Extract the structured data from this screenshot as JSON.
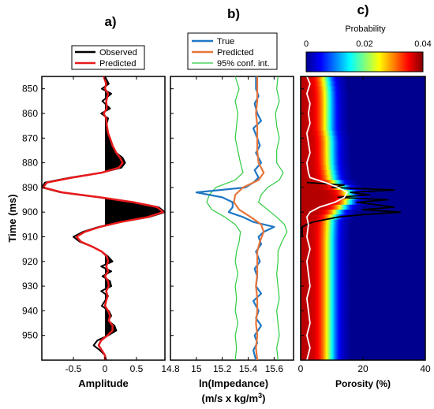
{
  "chart_data": [
    {
      "panel": "a)",
      "type": "line",
      "xlabel": "Amplitude",
      "ylabel": "Time (ms)",
      "xlim": [
        -1.0,
        0.95
      ],
      "ylim": [
        845,
        960
      ],
      "x_ticks": [
        "-0.5",
        "0",
        "0.5"
      ],
      "x_tick_values": [
        -0.5,
        0,
        0.5
      ],
      "y_ticks": [
        "850",
        "860",
        "870",
        "880",
        "890",
        "900",
        "910",
        "920",
        "930",
        "940",
        "950"
      ],
      "y_tick_values": [
        850,
        860,
        870,
        880,
        890,
        900,
        910,
        920,
        930,
        940,
        950
      ],
      "legend": {
        "position": "top-center",
        "entries": [
          "Observed",
          "Predicted"
        ]
      },
      "series": [
        {
          "name": "Observed",
          "color": "#000000",
          "t": [
            845,
            848,
            850,
            852,
            855,
            858,
            860,
            862,
            865,
            868,
            870,
            873,
            876,
            878,
            880,
            882,
            884,
            886,
            888,
            890,
            892,
            894,
            896,
            898,
            900,
            902,
            904,
            906,
            908,
            910,
            912,
            914,
            916,
            918,
            920,
            922,
            924,
            926,
            928,
            930,
            932,
            934,
            936,
            938,
            940,
            942,
            944,
            946,
            948,
            950,
            952,
            954,
            956,
            958,
            960
          ],
          "values": [
            0.0,
            0.06,
            -0.05,
            0.1,
            -0.04,
            0.08,
            -0.06,
            0.05,
            0.02,
            0.05,
            0.08,
            0.1,
            0.18,
            0.28,
            0.32,
            0.26,
            -0.05,
            -0.55,
            -0.95,
            -1.0,
            -0.7,
            -0.1,
            0.45,
            0.85,
            0.95,
            0.7,
            0.25,
            -0.1,
            -0.35,
            -0.5,
            -0.4,
            -0.2,
            -0.05,
            0.05,
            0.12,
            -0.06,
            0.1,
            -0.04,
            0.08,
            0.1,
            -0.06,
            0.05,
            0.0,
            -0.05,
            0.06,
            0.1,
            0.05,
            0.15,
            0.18,
            0.05,
            -0.12,
            -0.18,
            -0.08,
            0.0,
            0.02
          ]
        },
        {
          "name": "Predicted",
          "color": "#e8191b",
          "t": [
            845,
            848,
            850,
            852,
            855,
            858,
            860,
            862,
            865,
            868,
            870,
            873,
            876,
            878,
            880,
            882,
            884,
            886,
            888,
            890,
            892,
            894,
            896,
            898,
            900,
            902,
            904,
            906,
            908,
            910,
            912,
            914,
            916,
            918,
            920,
            922,
            924,
            926,
            928,
            930,
            932,
            934,
            936,
            938,
            940,
            942,
            944,
            946,
            948,
            950,
            952,
            954,
            956,
            958,
            960
          ],
          "values": [
            -0.02,
            0.02,
            0.0,
            0.05,
            0.02,
            0.03,
            -0.02,
            0.02,
            0.03,
            0.05,
            0.08,
            0.12,
            0.18,
            0.24,
            0.28,
            0.22,
            -0.05,
            -0.52,
            -0.92,
            -0.98,
            -0.68,
            -0.08,
            0.45,
            0.83,
            0.92,
            0.68,
            0.25,
            -0.08,
            -0.32,
            -0.45,
            -0.38,
            -0.2,
            -0.05,
            0.03,
            0.05,
            0.02,
            0.05,
            0.0,
            0.05,
            0.06,
            0.02,
            0.04,
            0.02,
            0.0,
            0.05,
            0.08,
            0.06,
            0.12,
            0.12,
            0.04,
            -0.06,
            -0.1,
            -0.05,
            0.0,
            0.0
          ]
        }
      ]
    },
    {
      "panel": "b)",
      "type": "line",
      "xlabel": "ln(Impedance)",
      "xlabel_units": "(m/s x kg/m",
      "xlabel_units_sup": "3",
      "xlabel_units_close": ")",
      "xlim": [
        14.8,
        15.75
      ],
      "ylim": [
        845,
        960
      ],
      "x_ticks": [
        "14.8",
        "15",
        "15.2",
        "15.4",
        "15.6"
      ],
      "x_tick_values": [
        14.8,
        15.0,
        15.2,
        15.4,
        15.6
      ],
      "legend": {
        "position": "top",
        "entries": [
          "True",
          "Predicted",
          "95% conf. int."
        ]
      },
      "series": [
        {
          "name": "True",
          "color": "#1f77c4",
          "t": [
            845,
            850,
            853,
            856,
            860,
            863,
            866,
            870,
            873,
            876,
            880,
            883,
            886,
            888,
            890,
            892,
            894,
            896,
            898,
            900,
            902,
            904,
            906,
            908,
            910,
            913,
            916,
            920,
            923,
            926,
            930,
            933,
            936,
            940,
            943,
            946,
            950,
            953,
            956,
            960
          ],
          "values": [
            15.46,
            15.46,
            15.48,
            15.45,
            15.47,
            15.5,
            15.44,
            15.47,
            15.49,
            15.46,
            15.5,
            15.45,
            15.48,
            15.44,
            15.38,
            15.0,
            15.2,
            15.28,
            15.28,
            15.25,
            15.36,
            15.44,
            15.6,
            15.52,
            15.48,
            15.5,
            15.46,
            15.49,
            15.45,
            15.47,
            15.46,
            15.5,
            15.44,
            15.48,
            15.46,
            15.5,
            15.45,
            15.47,
            15.44,
            15.46
          ]
        },
        {
          "name": "Predicted",
          "color": "#e8753a",
          "t": [
            845,
            850,
            855,
            860,
            865,
            870,
            875,
            880,
            884,
            887,
            890,
            893,
            896,
            899,
            902,
            905,
            908,
            912,
            916,
            920,
            925,
            930,
            935,
            940,
            945,
            950,
            955,
            960
          ],
          "values": [
            15.47,
            15.47,
            15.47,
            15.46,
            15.47,
            15.47,
            15.47,
            15.48,
            15.52,
            15.48,
            15.36,
            15.3,
            15.29,
            15.33,
            15.42,
            15.5,
            15.52,
            15.49,
            15.47,
            15.47,
            15.47,
            15.46,
            15.47,
            15.47,
            15.46,
            15.47,
            15.46,
            15.47
          ]
        },
        {
          "name": "95% conf. int.",
          "color": "#2ecc40",
          "t": [
            845,
            850,
            855,
            860,
            865,
            870,
            875,
            880,
            884,
            887,
            890,
            893,
            896,
            899,
            902,
            905,
            908,
            912,
            916,
            920,
            925,
            930,
            935,
            940,
            945,
            950,
            955,
            960
          ],
          "values": [
            15.3,
            15.33,
            15.3,
            15.32,
            15.31,
            15.3,
            15.32,
            15.34,
            15.36,
            15.3,
            15.15,
            15.1,
            15.08,
            15.12,
            15.22,
            15.3,
            15.34,
            15.33,
            15.31,
            15.3,
            15.32,
            15.3,
            15.31,
            15.3,
            15.32,
            15.3,
            15.31,
            15.3
          ]
        },
        {
          "name": "95% conf. int. upper",
          "color": "#2ecc40",
          "t": [
            845,
            850,
            855,
            860,
            865,
            870,
            875,
            880,
            884,
            887,
            890,
            893,
            896,
            899,
            902,
            905,
            908,
            912,
            916,
            920,
            925,
            930,
            935,
            940,
            945,
            950,
            955,
            960
          ],
          "values": [
            15.63,
            15.62,
            15.64,
            15.61,
            15.62,
            15.64,
            15.62,
            15.62,
            15.67,
            15.64,
            15.55,
            15.5,
            15.48,
            15.55,
            15.62,
            15.68,
            15.7,
            15.66,
            15.63,
            15.63,
            15.62,
            15.63,
            15.64,
            15.62,
            15.63,
            15.64,
            15.62,
            15.63
          ]
        }
      ]
    },
    {
      "panel": "c)",
      "type": "heatmap",
      "xlabel": "Porosity (%)",
      "xlim": [
        0,
        40
      ],
      "ylim": [
        845,
        960
      ],
      "x_ticks": [
        "0",
        "20",
        "40"
      ],
      "x_tick_values": [
        0,
        20,
        40
      ],
      "colorbar": {
        "label": "Probability",
        "range": [
          0,
          0.04
        ],
        "ticks": [
          "0",
          "0.02",
          "0.04"
        ],
        "tick_values": [
          0,
          0.02,
          0.04
        ],
        "colormap": "jet"
      },
      "grid_t": [
        845,
        850,
        855,
        860,
        865,
        870,
        875,
        880,
        885,
        888,
        890,
        892,
        894,
        896,
        898,
        900,
        903,
        906,
        910,
        915,
        920,
        925,
        930,
        935,
        940,
        945,
        950,
        955,
        960
      ],
      "density_center": [
        4,
        4.5,
        4.5,
        4.5,
        4.5,
        5,
        5,
        5,
        5.5,
        6.5,
        8,
        9,
        9,
        8,
        7,
        6,
        5,
        5,
        5,
        5,
        5,
        5,
        5,
        5,
        5,
        5,
        5,
        5,
        5
      ],
      "density_width": [
        4.2,
        4.2,
        4.3,
        4.3,
        4.3,
        4.4,
        4.4,
        4.5,
        4.6,
        5.5,
        6.5,
        7,
        7,
        6.5,
        5.5,
        5,
        4.6,
        4.5,
        4.4,
        4.4,
        4.4,
        4.4,
        4.4,
        4.4,
        4.4,
        4.4,
        4.4,
        4.4,
        4.4
      ],
      "series": [
        {
          "name": "Observed porosity",
          "color": "#000000",
          "t": [
            888,
            889,
            890,
            891,
            892,
            893,
            894,
            895,
            896,
            897,
            898,
            899,
            900,
            901,
            902,
            903,
            904,
            905,
            906,
            908,
            910
          ],
          "values": [
            2,
            14,
            10,
            30,
            16,
            22,
            12,
            28,
            18,
            24,
            30,
            20,
            32,
            20,
            12,
            8,
            4,
            2,
            0.5,
            0.5,
            0.5
          ]
        },
        {
          "name": "Mean porosity",
          "color": "#ffffff",
          "t": [
            845,
            848,
            852,
            856,
            860,
            864,
            868,
            872,
            876,
            880,
            884,
            886,
            888,
            890,
            892,
            894,
            896,
            898,
            900,
            902,
            905,
            910,
            915,
            920,
            925,
            930,
            935,
            940,
            945,
            950,
            955,
            960
          ],
          "values": [
            2,
            3,
            2,
            3,
            2.5,
            3,
            2,
            2.5,
            3,
            2,
            2.5,
            3,
            8,
            12,
            15,
            14,
            11,
            6,
            3,
            2,
            2.5,
            2,
            3,
            2,
            2.5,
            3,
            2,
            2.5,
            3,
            2,
            3,
            2
          ]
        }
      ]
    }
  ]
}
